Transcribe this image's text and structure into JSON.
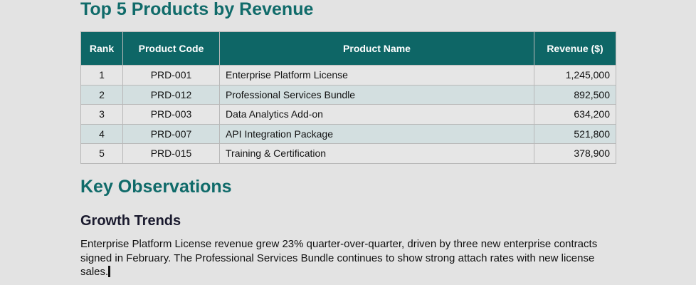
{
  "title": "Top 5 Products by Revenue",
  "table": {
    "headers": [
      "Rank",
      "Product Code",
      "Product Name",
      "Revenue ($)"
    ],
    "rows": [
      {
        "rank": "1",
        "code": "PRD-001",
        "name": "Enterprise Platform License",
        "revenue": "1,245,000"
      },
      {
        "rank": "2",
        "code": "PRD-012",
        "name": "Professional Services Bundle",
        "revenue": "892,500"
      },
      {
        "rank": "3",
        "code": "PRD-003",
        "name": "Data Analytics Add-on",
        "revenue": "634,200"
      },
      {
        "rank": "4",
        "code": "PRD-007",
        "name": "API Integration Package",
        "revenue": "521,800"
      },
      {
        "rank": "5",
        "code": "PRD-015",
        "name": "Training & Certification",
        "revenue": "378,900"
      }
    ]
  },
  "observations": {
    "heading": "Key Observations",
    "subheading": "Growth Trends",
    "paragraph": "Enterprise Platform License revenue grew 23% quarter-over-quarter, driven by three new enterprise contracts signed in February. The Professional Services Bundle continues to show strong attach rates with new license sales."
  },
  "colors": {
    "heading": "#106b6a",
    "table_header": "#0e6666",
    "alt_row": "#d3dfe0"
  }
}
